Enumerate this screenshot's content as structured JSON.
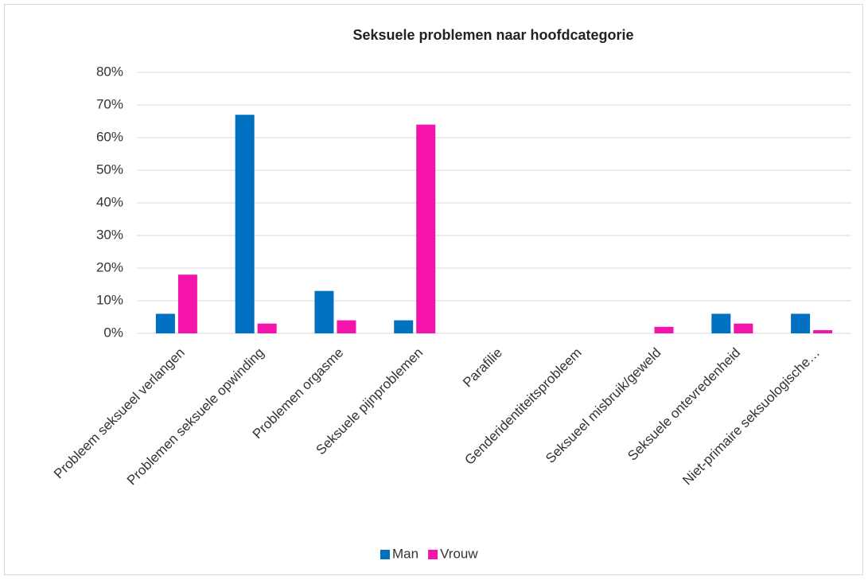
{
  "chart_data": {
    "type": "bar",
    "title": "Seksuele problemen naar hoofdcategorie",
    "categories": [
      "Probleem seksueel verlangen",
      "Problemen seksuele opwinding",
      "Problemen orgasme",
      "Seksuele pijnproblemen",
      "Parafilie",
      "Genderidentiteitsprobleem",
      "Seksueel misbruik/geweld",
      "Seksuele ontevredenheid",
      "Niet-primaire seksuologische…"
    ],
    "series": [
      {
        "name": "Man",
        "color": "#0070c0",
        "values": [
          6,
          67,
          13,
          4,
          0,
          0,
          0,
          6,
          6
        ]
      },
      {
        "name": "Vrouw",
        "color": "#f414ac",
        "values": [
          18,
          3,
          4,
          64,
          0,
          0,
          2,
          3,
          1
        ]
      }
    ],
    "ylim": [
      0,
      80
    ],
    "yticks": [
      {
        "value": 0,
        "label": "0%"
      },
      {
        "value": 10,
        "label": "10%"
      },
      {
        "value": 20,
        "label": "20%"
      },
      {
        "value": 30,
        "label": "30%"
      },
      {
        "value": 40,
        "label": "40%"
      },
      {
        "value": 50,
        "label": "50%"
      },
      {
        "value": 60,
        "label": "60%"
      },
      {
        "value": 70,
        "label": "70%"
      },
      {
        "value": 80,
        "label": "80%"
      }
    ],
    "grid": true,
    "legend": "bottom"
  }
}
